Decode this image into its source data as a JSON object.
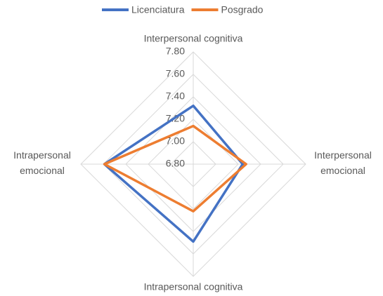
{
  "chart_data": {
    "type": "radar",
    "categories": [
      "Interpersonal cognitiva",
      "Interpersonal emocional",
      "Intrapersonal cognitiva",
      "Intrapersonal emocional"
    ],
    "series": [
      {
        "name": "Licenciatura",
        "color": "#4472c4",
        "values": [
          7.32,
          7.24,
          7.49,
          7.59
        ]
      },
      {
        "name": "Posgrado",
        "color": "#ed7d31",
        "values": [
          7.14,
          7.27,
          7.22,
          7.59
        ]
      }
    ],
    "ylim": [
      6.8,
      7.8
    ],
    "yticks": [
      {
        "value": 6.8,
        "label": "6.80"
      },
      {
        "value": 7.0,
        "label": "7.00"
      },
      {
        "value": 7.2,
        "label": "7.20"
      },
      {
        "value": 7.4,
        "label": "7.40"
      },
      {
        "value": 7.6,
        "label": "7.60"
      },
      {
        "value": 7.8,
        "label": "7.80"
      }
    ],
    "grid": true,
    "legend": "top"
  }
}
